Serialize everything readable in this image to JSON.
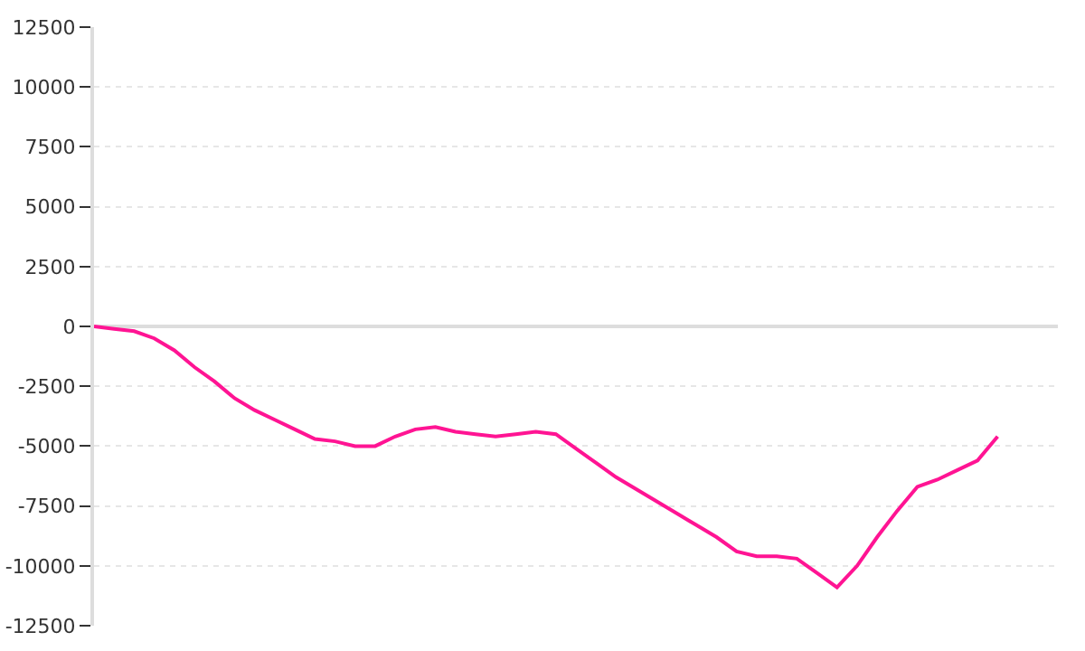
{
  "chart_data": {
    "type": "line",
    "categories": [
      null,
      null,
      null,
      null,
      null,
      null,
      null,
      null,
      null,
      null,
      null,
      null,
      null,
      null,
      null,
      null,
      null,
      null,
      null,
      null,
      null,
      null,
      null,
      null,
      null,
      null,
      null,
      null,
      null,
      null,
      null,
      null,
      null,
      null,
      null,
      null,
      null,
      null,
      null,
      null,
      null,
      null,
      null,
      null,
      null,
      null,
      null,
      null,
      null
    ],
    "series": [
      {
        "color": "#ff1493",
        "values": [
          0,
          -100,
          -200,
          -500,
          -1000,
          -1700,
          -2300,
          -3000,
          -3500,
          -3900,
          -4300,
          -4700,
          -4800,
          -5000,
          -5000,
          -4600,
          -4300,
          -4200,
          -4400,
          -4500,
          -4600,
          -4500,
          -4400,
          -4500,
          -5100,
          -5700,
          -6300,
          -6800,
          -7300,
          -7800,
          -8300,
          -8800,
          -9400,
          -9600,
          -9600,
          -9700,
          -10300,
          -10900,
          -10000,
          -8800,
          -7700,
          -6700,
          -6400,
          -6000,
          -5600,
          -4600,
          null,
          null,
          null
        ]
      }
    ],
    "ylim": [
      -12500,
      12500
    ],
    "yticks": [
      -12500,
      -10000,
      -7500,
      -5000,
      -2500,
      0,
      2500,
      5000,
      7500,
      10000,
      12500
    ],
    "grid": "y",
    "tick_labels": "y",
    "marker": "none",
    "line_style": "solid"
  }
}
